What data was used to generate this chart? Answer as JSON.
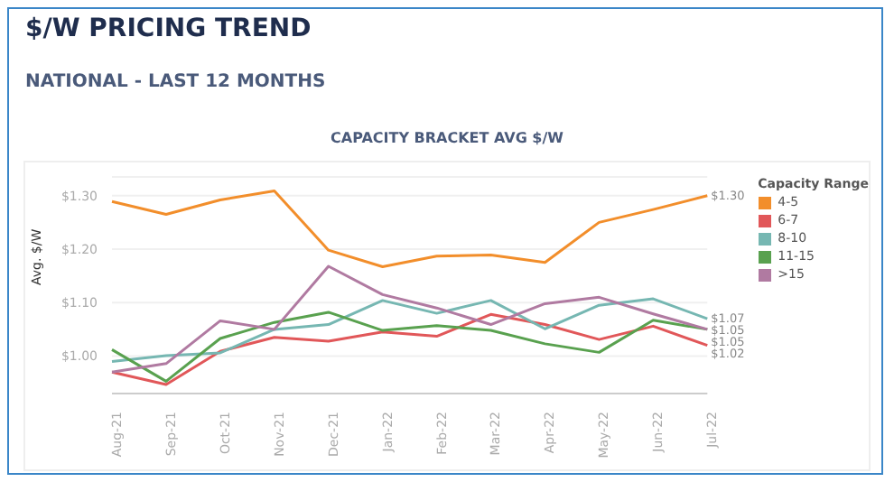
{
  "chart_data": {
    "type": "line",
    "title": "$/W PRICING TREND",
    "subtitle": "NATIONAL - LAST 12 MONTHS",
    "annotations": [
      "CAPACITY BRACKET AVG $/W"
    ],
    "ylabel": "Avg. $/W",
    "legend_title": "Capacity Range",
    "legend": "right",
    "grid": "y",
    "marker": "none",
    "categories": [
      "Aug-21",
      "Sep-21",
      "Oct-21",
      "Nov-21",
      "Dec-21",
      "Jan-22",
      "Feb-22",
      "Mar-22",
      "Apr-22",
      "May-22",
      "Jun-22",
      "Jul-22"
    ],
    "ylim": [
      0.93,
      1.335
    ],
    "yticks": [
      {
        "value": 1.0,
        "label": "$1.00"
      },
      {
        "value": 1.1,
        "label": "$1.10"
      },
      {
        "value": 1.2,
        "label": "$1.20"
      },
      {
        "value": 1.3,
        "label": "$1.30"
      }
    ],
    "series": [
      {
        "name": "4-5",
        "color": "#f28e2b",
        "values": [
          1.289,
          1.265,
          1.292,
          1.309,
          1.198,
          1.167,
          1.187,
          1.189,
          1.175,
          1.25,
          1.274,
          1.3
        ],
        "value_labels": [
          null,
          null,
          null,
          null,
          null,
          null,
          null,
          null,
          null,
          null,
          null,
          "$1.30"
        ]
      },
      {
        "name": "6-7",
        "color": "#e15759",
        "values": [
          0.97,
          0.947,
          1.009,
          1.035,
          1.028,
          1.045,
          1.037,
          1.078,
          1.059,
          1.031,
          1.056,
          1.02
        ],
        "value_labels": [
          null,
          null,
          null,
          null,
          null,
          null,
          null,
          null,
          null,
          null,
          null,
          "$1.02"
        ]
      },
      {
        "name": "8-10",
        "color": "#76b7b2",
        "values": [
          0.99,
          1.001,
          1.006,
          1.05,
          1.059,
          1.104,
          1.08,
          1.104,
          1.051,
          1.095,
          1.107,
          1.07
        ],
        "value_labels": [
          null,
          null,
          null,
          null,
          null,
          null,
          null,
          null,
          null,
          null,
          null,
          "$1.07"
        ]
      },
      {
        "name": "11-15",
        "color": "#59a14f",
        "values": [
          1.012,
          0.953,
          1.033,
          1.063,
          1.082,
          1.048,
          1.057,
          1.048,
          1.023,
          1.007,
          1.067,
          1.05
        ],
        "value_labels": [
          null,
          null,
          null,
          null,
          null,
          null,
          null,
          null,
          null,
          null,
          null,
          "$1.05"
        ]
      },
      {
        "name": ">15",
        "color": "#b07aa1",
        "values": [
          0.97,
          0.986,
          1.066,
          1.05,
          1.168,
          1.115,
          1.09,
          1.059,
          1.098,
          1.11,
          1.079,
          1.05
        ],
        "value_labels": [
          null,
          null,
          null,
          null,
          null,
          null,
          null,
          null,
          null,
          null,
          null,
          "$1.05"
        ]
      }
    ]
  }
}
